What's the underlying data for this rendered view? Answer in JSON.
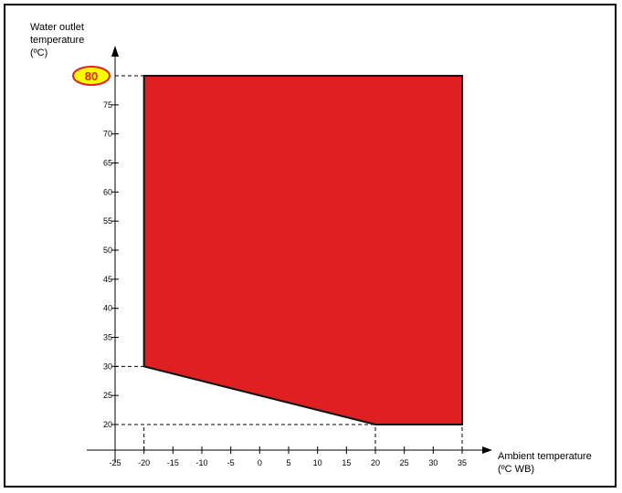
{
  "chart_data": {
    "type": "area",
    "title": "",
    "ylabel_lines": [
      "Water outlet",
      "temperature",
      "(ºC)"
    ],
    "xlabel_lines": [
      "Ambient temperature",
      "(ºC WB)"
    ],
    "xlim": [
      -25,
      35
    ],
    "ylim": [
      20,
      80
    ],
    "grid": false,
    "x_ticks": [
      -25,
      -20,
      -15,
      -10,
      -5,
      0,
      5,
      10,
      15,
      20,
      25,
      30,
      35
    ],
    "x_tick_labels": [
      "-25",
      "-20",
      "-15",
      "-10",
      "-5",
      "0",
      "5",
      "10",
      "15",
      "20",
      "25",
      "30",
      "35"
    ],
    "y_ticks": [
      20,
      25,
      30,
      35,
      40,
      45,
      50,
      55,
      60,
      65,
      70,
      75
    ],
    "y_tick_labels": [
      "20",
      "25",
      "30",
      "35",
      "40",
      "45",
      "50",
      "55",
      "60",
      "65",
      "70",
      "75"
    ],
    "region": {
      "points": [
        [
          -20,
          80
        ],
        [
          35,
          80
        ],
        [
          35,
          20
        ],
        [
          20,
          20
        ],
        [
          -20,
          30
        ]
      ]
    },
    "highlight_label": "80",
    "highlight_y": 80,
    "guide_lines": [
      {
        "kind": "h",
        "y": 80,
        "x_from": -25,
        "x_to": -20
      },
      {
        "kind": "h",
        "y": 30,
        "x_from": -25,
        "x_to": -20
      },
      {
        "kind": "h",
        "y": 20,
        "x_from": -25,
        "x_to": 20
      },
      {
        "kind": "v",
        "x": -20,
        "y_from": 20,
        "y_to": 30
      },
      {
        "kind": "v",
        "x": 20,
        "y_from": 20,
        "y_to": 30
      },
      {
        "kind": "v",
        "x": 35,
        "y_from": 20,
        "y_to": 30
      }
    ],
    "colors": {
      "region": "#e02020",
      "highlight_fill": "#ffff00",
      "highlight_border": "#e02020",
      "highlight_text": "#e02020"
    }
  }
}
